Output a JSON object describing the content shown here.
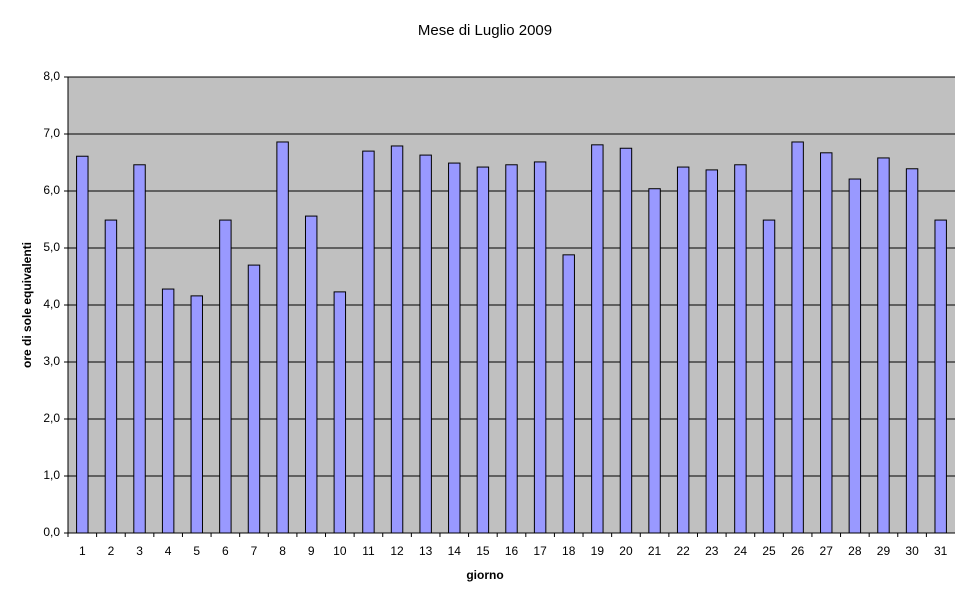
{
  "chart_data": {
    "type": "bar",
    "title": "Mese di Luglio 2009",
    "x_label": "giorno",
    "y_label": "ore di sole equivalenti",
    "categories": [
      "1",
      "2",
      "3",
      "4",
      "5",
      "6",
      "7",
      "8",
      "9",
      "10",
      "11",
      "12",
      "13",
      "14",
      "15",
      "16",
      "17",
      "18",
      "19",
      "20",
      "21",
      "22",
      "23",
      "24",
      "25",
      "26",
      "27",
      "28",
      "29",
      "30",
      "31"
    ],
    "values": [
      6.61,
      5.49,
      6.46,
      4.28,
      4.16,
      5.49,
      4.7,
      6.86,
      5.56,
      4.23,
      6.7,
      6.79,
      6.63,
      6.49,
      6.42,
      6.46,
      6.51,
      4.88,
      6.81,
      6.75,
      6.04,
      6.42,
      6.37,
      6.46,
      5.49,
      6.86,
      6.67,
      6.21,
      6.58,
      6.39,
      5.49
    ],
    "color": "#9999ff",
    "ylim": [
      0,
      8
    ],
    "yticks": [
      {
        "value": 0,
        "label": "0,0"
      },
      {
        "value": 1,
        "label": "1,0"
      },
      {
        "value": 2,
        "label": "2,0"
      },
      {
        "value": 3,
        "label": "3,0"
      },
      {
        "value": 4,
        "label": "4,0"
      },
      {
        "value": 5,
        "label": "5,0"
      },
      {
        "value": 6,
        "label": "6,0"
      },
      {
        "value": 7,
        "label": "7,0"
      },
      {
        "value": 8,
        "label": "8,0"
      }
    ],
    "grid": true
  }
}
